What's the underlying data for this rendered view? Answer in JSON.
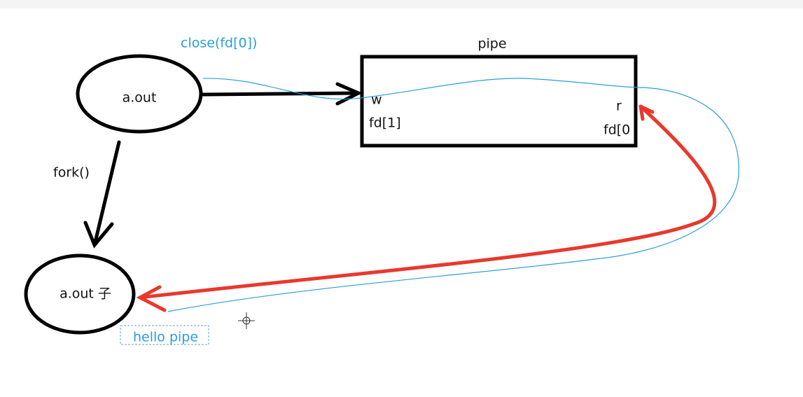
{
  "annotations": {
    "close": "close(fd[0])",
    "fork": "fork()",
    "hello": "hello pipe"
  },
  "nodes": [
    {
      "label": "a.out"
    },
    {
      "label": "a.out 子"
    }
  ],
  "pipe": {
    "title": "pipe",
    "write_end": "w",
    "write_fd": "fd[1]",
    "read_end": "r",
    "read_fd": "fd[0"
  }
}
